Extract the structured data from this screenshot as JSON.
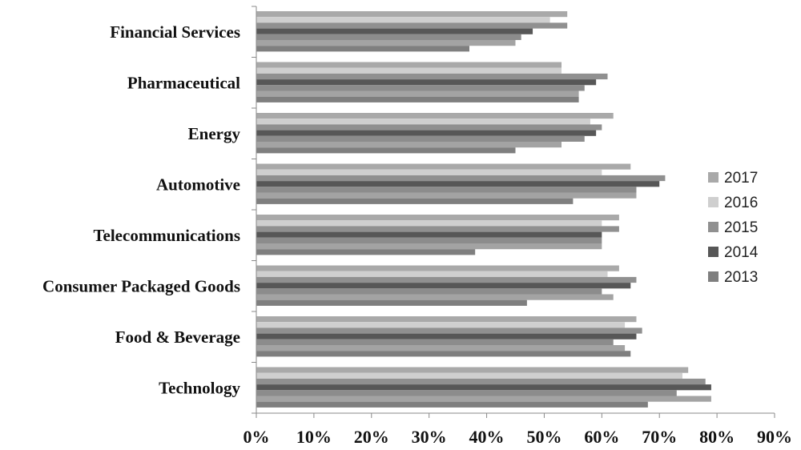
{
  "chart_data": {
    "type": "bar",
    "orientation": "horizontal",
    "title": "",
    "xlabel": "",
    "ylabel": "",
    "xlim": [
      0,
      90
    ],
    "x_ticks": [
      "0%",
      "10%",
      "20%",
      "30%",
      "40%",
      "50%",
      "60%",
      "70%",
      "80%",
      "90%"
    ],
    "categories": [
      "Financial Services",
      "Pharmaceutical",
      "Energy",
      "Automotive",
      "Telecommunications",
      "Consumer Packaged Goods",
      "Food & Beverage",
      "Technology"
    ],
    "series": [
      {
        "name": "2017",
        "color": "#a9a9a9",
        "values": [
          54,
          53,
          62,
          65,
          63,
          63,
          66,
          75
        ]
      },
      {
        "name": "2016",
        "color": "#cfcfcf",
        "values": [
          51,
          53,
          58,
          60,
          60,
          61,
          64,
          74
        ]
      },
      {
        "name": "2015",
        "color": "#909090",
        "values": [
          54,
          61,
          60,
          71,
          63,
          66,
          67,
          78
        ]
      },
      {
        "name": "2014",
        "color": "#575757",
        "values": [
          48,
          59,
          59,
          70,
          60,
          65,
          66,
          79
        ]
      },
      {
        "name": "2013",
        "color": "#7f7f7f",
        "values": [
          37,
          56,
          45,
          55,
          38,
          47,
          65,
          68
        ]
      }
    ],
    "extra_bars_note_free": [
      [
        46,
        57,
        57,
        66,
        60,
        60,
        62,
        73
      ],
      [
        45,
        56,
        53,
        66,
        60,
        62,
        64,
        79
      ]
    ],
    "legend_position": "right",
    "grid": false
  }
}
